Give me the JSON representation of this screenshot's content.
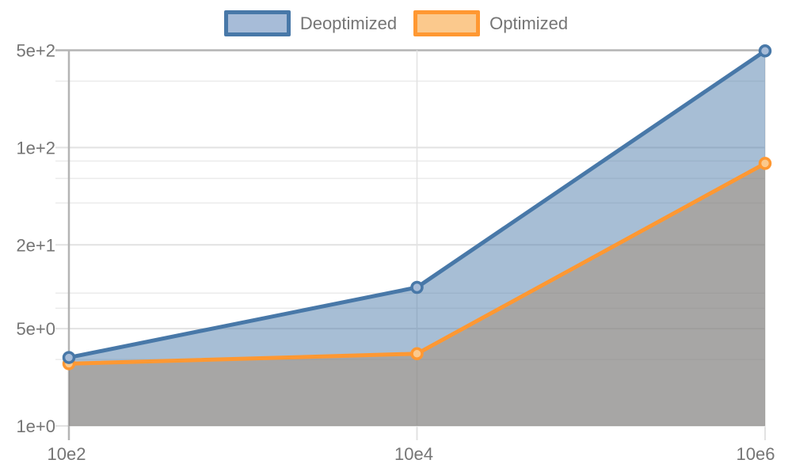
{
  "colors": {
    "background": "#ffffff",
    "text": "#757575",
    "axis_line": "#b4b4b4",
    "grid_major": "#e2e2e2",
    "grid_minor": "#ebebeb"
  },
  "chart_data": {
    "type": "area",
    "title": "",
    "xlabel": "",
    "ylabel": "",
    "y_scale": "log",
    "ylim": [
      1,
      522
    ],
    "grid": true,
    "legend_position": "top-center",
    "x_tick_labels": [
      "10e2",
      "10e4",
      "10e6"
    ],
    "y_ticks": [
      {
        "label": "5e+2",
        "value": 500
      },
      {
        "label": "1e+2",
        "value": 100
      },
      {
        "label": "2e+1",
        "value": 20
      },
      {
        "label": "5e+0",
        "value": 5
      },
      {
        "label": "1e+0",
        "value": 1
      }
    ],
    "y_minor_tick_values": [
      300,
      80,
      60,
      40,
      9,
      7,
      3
    ],
    "series": [
      {
        "name": "Deoptimized",
        "color": "#4878a8",
        "fill": "rgba(72,120,168,0.48)",
        "point_fill": "#a7bcd8",
        "values": [
          3.1,
          9.9,
          495
        ]
      },
      {
        "name": "Optimized",
        "color": "#ff9832",
        "fill": "rgba(255,152,50,0.45)",
        "point_fill": "#fbc98d",
        "values": [
          2.8,
          3.3,
          77
        ]
      }
    ]
  }
}
